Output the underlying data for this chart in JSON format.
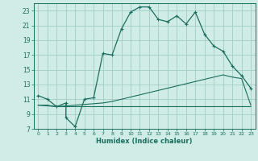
{
  "xlabel": "Humidex (Indice chaleur)",
  "bg_color": "#d0ece6",
  "grid_color": "#a0ccC4",
  "line_color": "#1a6e5e",
  "xlim": [
    -0.5,
    23.5
  ],
  "ylim": [
    7,
    24
  ],
  "xticks": [
    0,
    1,
    2,
    3,
    4,
    5,
    6,
    7,
    8,
    9,
    10,
    11,
    12,
    13,
    14,
    15,
    16,
    17,
    18,
    19,
    20,
    21,
    22,
    23
  ],
  "yticks": [
    7,
    9,
    11,
    13,
    15,
    17,
    19,
    21,
    23
  ],
  "series1_x": [
    0,
    1,
    2,
    3,
    3,
    4,
    5,
    6,
    7,
    8,
    9,
    10,
    11,
    12,
    13,
    14,
    15,
    16,
    17,
    18,
    19,
    20,
    21,
    22,
    23
  ],
  "series1_y": [
    11.5,
    11.0,
    10.0,
    10.5,
    8.5,
    7.3,
    11.0,
    11.2,
    17.2,
    17.0,
    20.5,
    22.8,
    23.5,
    23.5,
    21.8,
    21.5,
    22.3,
    21.2,
    22.8,
    19.8,
    18.2,
    17.5,
    15.5,
    14.2,
    12.5
  ],
  "series2_x": [
    0,
    1,
    2,
    3,
    4,
    5,
    6,
    7,
    8,
    9,
    10,
    11,
    12,
    13,
    14,
    15,
    16,
    17,
    18,
    19,
    20,
    21,
    22,
    23
  ],
  "series2_y": [
    10.2,
    10.2,
    10.0,
    10.1,
    10.2,
    10.3,
    10.4,
    10.5,
    10.7,
    11.0,
    11.3,
    11.6,
    11.9,
    12.2,
    12.5,
    12.8,
    13.1,
    13.4,
    13.7,
    14.0,
    14.3,
    14.0,
    13.8,
    10.2
  ],
  "series3_x": [
    0,
    1,
    2,
    3,
    4,
    5,
    6,
    7,
    8,
    9,
    10,
    11,
    12,
    13,
    14,
    15,
    16,
    17,
    18,
    19,
    20,
    21,
    22,
    23
  ],
  "series3_y": [
    10.2,
    10.1,
    10.0,
    10.0,
    10.0,
    10.0,
    10.0,
    10.0,
    10.0,
    10.0,
    10.0,
    10.0,
    10.0,
    10.0,
    10.0,
    10.0,
    10.0,
    10.0,
    10.0,
    10.0,
    10.0,
    10.0,
    10.0,
    10.0
  ]
}
